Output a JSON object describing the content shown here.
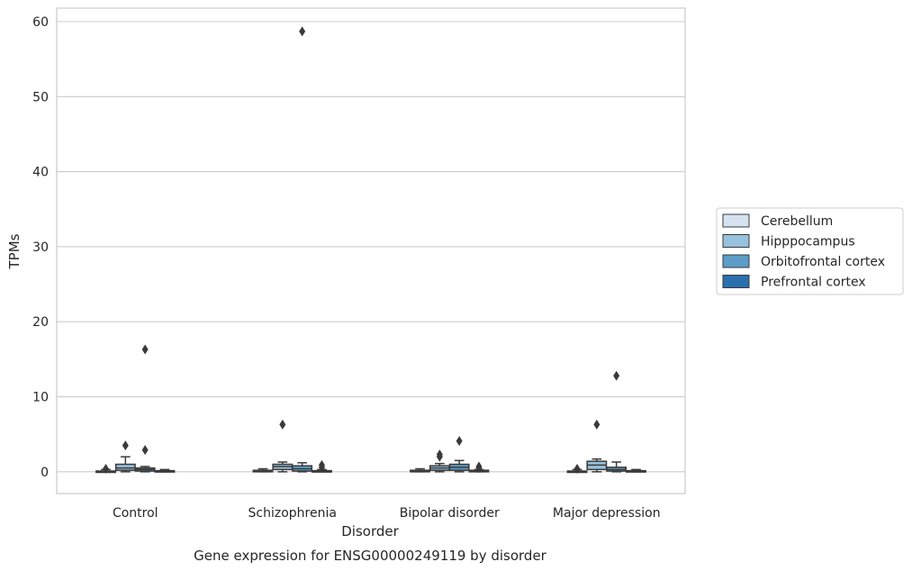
{
  "caption": "Gene expression for ENSG00000249119 by disorder",
  "chart_data": {
    "type": "box",
    "title": "",
    "xlabel": "Disorder",
    "ylabel": "TPMs",
    "ylim": [
      -2.9,
      61.8
    ],
    "yticks": [
      0,
      10,
      20,
      30,
      40,
      50,
      60
    ],
    "ytick_labels": [
      "0",
      "10",
      "20",
      "30",
      "40",
      "50",
      "60"
    ],
    "grid": "horizontal",
    "legend_position": "right",
    "categories": [
      "Control",
      "Schizophrenia",
      "Bipolar disorder",
      "Major depression"
    ],
    "series": [
      {
        "name": "Cerebellum",
        "color": "#d5e3f0",
        "boxes": [
          {
            "whislo": 0.0,
            "q1": 0.0,
            "med": 0.05,
            "q3": 0.1,
            "whishi": 0.3,
            "fliers": [
              0.4
            ]
          },
          {
            "whislo": 0.0,
            "q1": 0.0,
            "med": 0.1,
            "q3": 0.2,
            "whishi": 0.4,
            "fliers": []
          },
          {
            "whislo": 0.0,
            "q1": 0.0,
            "med": 0.1,
            "q3": 0.2,
            "whishi": 0.4,
            "fliers": []
          },
          {
            "whislo": 0.0,
            "q1": 0.0,
            "med": 0.05,
            "q3": 0.1,
            "whishi": 0.3,
            "fliers": [
              0.4
            ]
          }
        ]
      },
      {
        "name": "Hipppocampus",
        "color": "#98c1dd",
        "boxes": [
          {
            "whislo": 0.0,
            "q1": 0.2,
            "med": 0.5,
            "q3": 1.0,
            "whishi": 2.0,
            "fliers": [
              3.5
            ]
          },
          {
            "whislo": 0.0,
            "q1": 0.3,
            "med": 0.7,
            "q3": 1.0,
            "whishi": 1.3,
            "fliers": [
              6.3
            ]
          },
          {
            "whislo": 0.0,
            "q1": 0.2,
            "med": 0.5,
            "q3": 0.8,
            "whishi": 1.1,
            "fliers": [
              2.0,
              2.3
            ]
          },
          {
            "whislo": 0.0,
            "q1": 0.3,
            "med": 0.9,
            "q3": 1.4,
            "whishi": 1.7,
            "fliers": [
              6.3
            ]
          }
        ]
      },
      {
        "name": "Orbitofrontal cortex",
        "color": "#5d9dc8",
        "boxes": [
          {
            "whislo": 0.0,
            "q1": 0.1,
            "med": 0.3,
            "q3": 0.5,
            "whishi": 0.7,
            "fliers": [
              2.9,
              16.3
            ]
          },
          {
            "whislo": 0.0,
            "q1": 0.1,
            "med": 0.4,
            "q3": 0.8,
            "whishi": 1.2,
            "fliers": [
              58.7
            ]
          },
          {
            "whislo": 0.0,
            "q1": 0.2,
            "med": 0.6,
            "q3": 1.0,
            "whishi": 1.5,
            "fliers": [
              4.1
            ]
          },
          {
            "whislo": 0.0,
            "q1": 0.1,
            "med": 0.3,
            "q3": 0.6,
            "whishi": 1.3,
            "fliers": [
              12.8
            ]
          }
        ]
      },
      {
        "name": "Prefrontal cortex",
        "color": "#2c6fae",
        "boxes": [
          {
            "whislo": 0.0,
            "q1": 0.0,
            "med": 0.05,
            "q3": 0.15,
            "whishi": 0.3,
            "fliers": []
          },
          {
            "whislo": 0.0,
            "q1": 0.0,
            "med": 0.05,
            "q3": 0.15,
            "whishi": 0.3,
            "fliers": [
              0.6,
              0.9
            ]
          },
          {
            "whislo": 0.0,
            "q1": 0.0,
            "med": 0.1,
            "q3": 0.2,
            "whishi": 0.3,
            "fliers": [
              0.5,
              0.7
            ]
          },
          {
            "whislo": 0.0,
            "q1": 0.0,
            "med": 0.05,
            "q3": 0.15,
            "whishi": 0.3,
            "fliers": []
          }
        ]
      }
    ]
  }
}
